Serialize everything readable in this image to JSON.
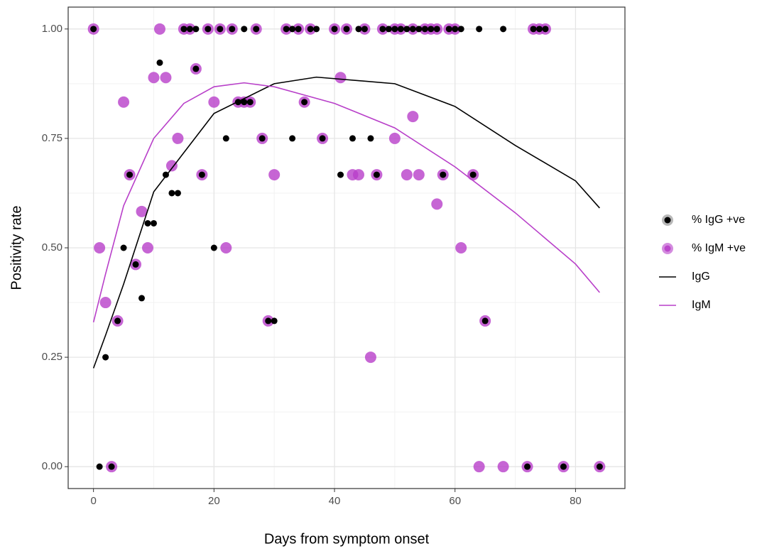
{
  "chart_data": {
    "type": "scatter",
    "xlabel": "Days from symptom onset",
    "ylabel": "Positivity rate",
    "xlim": [
      -4.2,
      88.2
    ],
    "ylim": [
      -0.05,
      1.05
    ],
    "xticks": [
      0,
      20,
      40,
      60,
      80
    ],
    "yticks": [
      {
        "value": 0,
        "label": "0.00"
      },
      {
        "value": 0.25,
        "label": "0.25"
      },
      {
        "value": 0.5,
        "label": "0.50"
      },
      {
        "value": 0.75,
        "label": "0.75"
      },
      {
        "value": 1,
        "label": "1.00"
      }
    ],
    "minor_xticks": [
      10,
      30,
      50,
      70
    ],
    "minor_yticks": [
      0.125,
      0.375,
      0.625,
      0.875
    ],
    "grid": true,
    "legend": "right",
    "series": [
      {
        "name": "% IgG +ve",
        "mark": "point",
        "color": "#000000",
        "x": [
          0,
          15,
          16,
          17,
          19,
          21,
          23,
          25,
          27,
          32,
          33,
          34,
          36,
          37,
          40,
          42,
          44,
          45,
          48,
          49,
          50,
          51,
          52,
          53,
          54,
          55,
          56,
          57,
          59,
          60,
          61,
          64,
          68,
          73,
          74,
          75,
          11,
          17,
          12,
          13,
          14,
          9,
          10,
          5,
          7,
          8,
          2,
          1,
          3,
          4,
          6,
          18,
          20,
          22,
          24,
          25,
          26,
          28,
          33,
          35,
          38,
          43,
          46,
          41,
          47,
          58,
          63,
          29,
          30,
          65,
          72,
          78,
          84
        ],
        "values": [
          1,
          1,
          1,
          1,
          1,
          1,
          1,
          1,
          1,
          1,
          1,
          1,
          1,
          1,
          1,
          1,
          1,
          1,
          1,
          1,
          1,
          1,
          1,
          1,
          1,
          1,
          1,
          1,
          1,
          1,
          1,
          1,
          1,
          1,
          1,
          1,
          0.923,
          0.909,
          0.667,
          0.625,
          0.625,
          0.556,
          0.556,
          0.5,
          0.462,
          0.385,
          0.25,
          0,
          0,
          0.333,
          0.667,
          0.667,
          0.5,
          0.75,
          0.833,
          0.833,
          0.833,
          0.75,
          0.75,
          0.833,
          0.75,
          0.75,
          0.75,
          0.667,
          0.667,
          0.667,
          0.667,
          0.333,
          0.333,
          0.333,
          0,
          0,
          0
        ]
      },
      {
        "name": "% IgM +ve",
        "mark": "point",
        "color": "#b83fc9",
        "x": [
          0,
          11,
          15,
          16,
          19,
          21,
          23,
          27,
          32,
          34,
          36,
          40,
          42,
          45,
          48,
          50,
          51,
          53,
          55,
          56,
          57,
          59,
          60,
          73,
          74,
          75,
          10,
          12,
          41,
          5,
          17,
          20,
          24,
          25,
          26,
          35,
          14,
          28,
          38,
          50,
          53,
          13,
          6,
          18,
          30,
          43,
          44,
          47,
          52,
          54,
          58,
          63,
          8,
          57,
          1,
          9,
          22,
          61,
          7,
          2,
          4,
          29,
          65,
          46,
          3,
          64,
          68,
          72,
          78,
          84
        ],
        "values": [
          1,
          1,
          1,
          1,
          1,
          1,
          1,
          1,
          1,
          1,
          1,
          1,
          1,
          1,
          1,
          1,
          1,
          1,
          1,
          1,
          1,
          1,
          1,
          1,
          1,
          1,
          0.889,
          0.889,
          0.889,
          0.833,
          0.909,
          0.833,
          0.833,
          0.833,
          0.833,
          0.833,
          0.75,
          0.75,
          0.75,
          0.75,
          0.8,
          0.6875,
          0.667,
          0.667,
          0.667,
          0.667,
          0.667,
          0.667,
          0.667,
          0.667,
          0.667,
          0.667,
          0.583,
          0.6,
          0.5,
          0.5,
          0.5,
          0.5,
          0.462,
          0.375,
          0.333,
          0.333,
          0.333,
          0.25,
          0,
          0,
          0,
          0,
          0,
          0
        ]
      },
      {
        "name": "IgG",
        "mark": "line",
        "color": "#000000",
        "x": [
          0,
          2,
          5,
          10,
          20,
          30,
          37,
          50,
          60,
          70,
          80,
          84
        ],
        "values": [
          0.225,
          0.3,
          0.417,
          0.628,
          0.807,
          0.875,
          0.89,
          0.875,
          0.823,
          0.734,
          0.653,
          0.591
        ]
      },
      {
        "name": "IgM",
        "mark": "line",
        "color": "#b83fc9",
        "x": [
          0,
          2,
          5,
          10,
          15,
          20,
          25,
          30,
          40,
          50,
          60,
          70,
          80,
          84
        ],
        "values": [
          0.33,
          0.44,
          0.596,
          0.75,
          0.83,
          0.868,
          0.877,
          0.868,
          0.83,
          0.774,
          0.685,
          0.58,
          0.463,
          0.398
        ]
      }
    ]
  }
}
